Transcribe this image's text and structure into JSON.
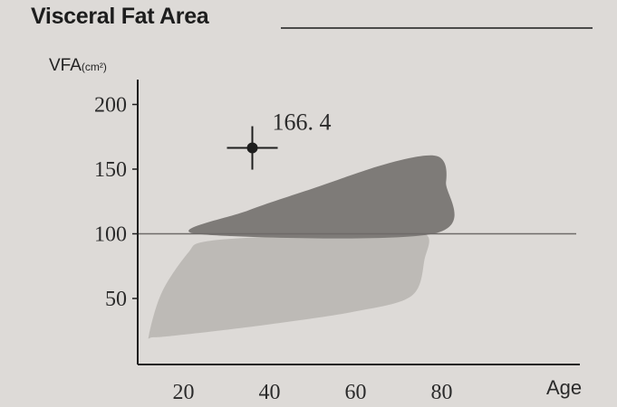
{
  "header": {
    "title": "Visceral Fat Area"
  },
  "chart_data": {
    "type": "scatter",
    "title": "Visceral Fat Area",
    "ylabel": "VFA",
    "yunit": "(cm²)",
    "xlabel": "Age",
    "xlim": [
      10,
      90
    ],
    "ylim": [
      0,
      210
    ],
    "x_ticks": [
      20,
      40,
      60,
      80
    ],
    "y_ticks": [
      50,
      100,
      150,
      200
    ],
    "reference_line": {
      "y": 100
    },
    "grid": false,
    "legend": "none",
    "regions": [
      {
        "level": "normal",
        "color": "#bdbab6",
        "points": [
          [
            12,
            22
          ],
          [
            15,
            55
          ],
          [
            21,
            85
          ],
          [
            25,
            94
          ],
          [
            42,
            98
          ],
          [
            62,
            99
          ],
          [
            76,
            100
          ],
          [
            76,
            80
          ],
          [
            73,
            52
          ],
          [
            60,
            40
          ],
          [
            40,
            30
          ],
          [
            20,
            22
          ],
          [
            13,
            20
          ]
        ]
      },
      {
        "level": "high",
        "color": "#7e7b78",
        "points": [
          [
            23,
            100
          ],
          [
            35,
            118
          ],
          [
            50,
            135
          ],
          [
            65,
            152
          ],
          [
            75,
            160
          ],
          [
            80,
            158
          ],
          [
            81,
            140
          ],
          [
            78,
            100
          ]
        ]
      }
    ],
    "points": [
      {
        "x": 36,
        "y": 166.4,
        "label": "166. 4"
      }
    ]
  }
}
